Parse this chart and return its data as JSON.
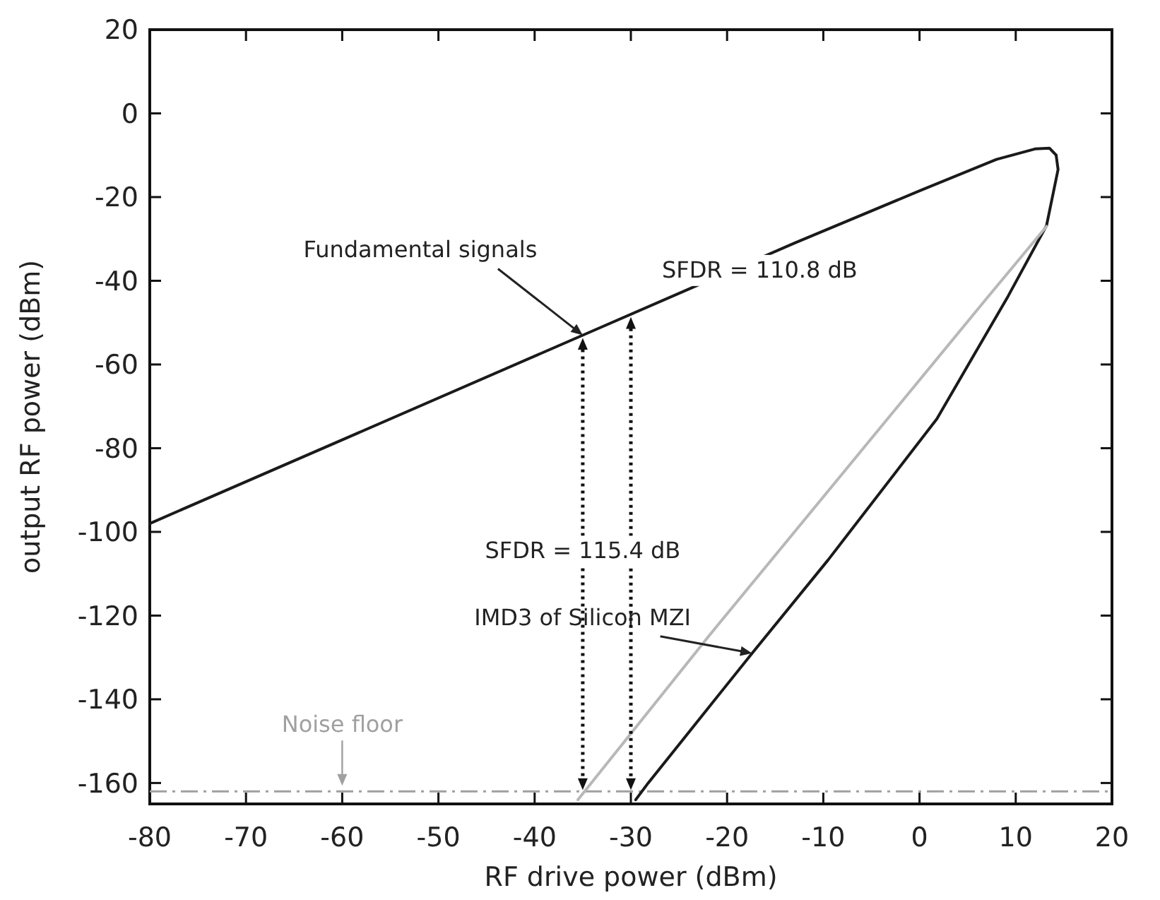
{
  "chart_data": {
    "type": "line",
    "xlabel": "RF drive power (dBm)",
    "ylabel": "output RF power (dBm)",
    "xlim": [
      -80,
      20
    ],
    "xticks": [
      -80,
      -70,
      -60,
      -50,
      -40,
      -30,
      -20,
      -10,
      0,
      10,
      20
    ],
    "ylim": [
      -165,
      20
    ],
    "yticks": [
      -160,
      -140,
      -120,
      -100,
      -80,
      -60,
      -40,
      -20,
      0,
      20
    ],
    "grid": false,
    "series": [
      {
        "color": "#1a1a1a",
        "x": [
          -80,
          -35,
          -13,
          0,
          8,
          12,
          13.5,
          14.2
        ],
        "values": [
          -98,
          -53,
          -31,
          -18.5,
          -11,
          -8.5,
          -8.3,
          -10
        ]
      },
      {
        "color": "#1a1a1a",
        "x": [
          14.2,
          14.4,
          13.2,
          9.2,
          1.8,
          -9.5,
          -17.4,
          -28.2,
          -29.5
        ],
        "values": [
          -10,
          -13.4,
          -26.8,
          -43.7,
          -73,
          -106.7,
          -129,
          -160,
          -164
        ]
      },
      {
        "color": "#b8b8b8",
        "x": [
          -35.5,
          -21.8,
          6.7,
          13.2
        ],
        "values": [
          -164,
          -124.6,
          -45,
          -27
        ]
      }
    ],
    "ref_lines": [
      {
        "axis": "y",
        "value": -162,
        "label": "Noise floor",
        "color": "#a0a0a0",
        "line_style": "dashed"
      }
    ],
    "annotations": [
      {
        "text": "Fundamental signals",
        "x": -35,
        "y": -53
      },
      {
        "text": "SFDR = 110.8 dB",
        "x": -30,
        "y": -48
      },
      "SFDR = 115.4 dB",
      {
        "text": "IMD3 of Silicon MZI",
        "x": -17.4,
        "y": -129
      }
    ]
  }
}
